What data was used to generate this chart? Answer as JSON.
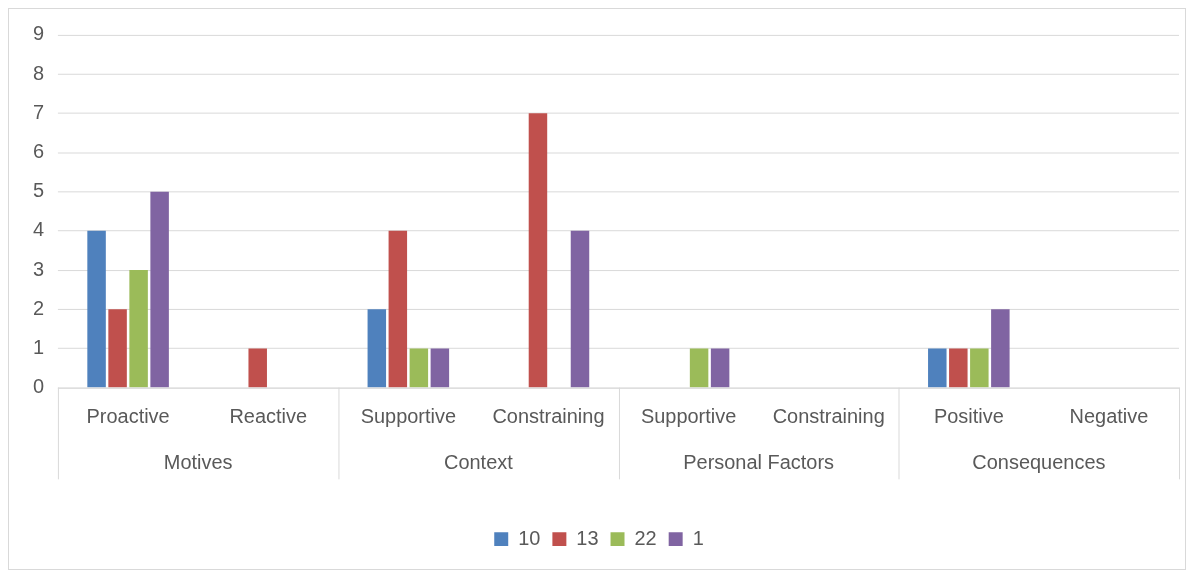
{
  "chart_data": {
    "type": "bar",
    "categories": [
      "Proactive",
      "Reactive",
      "Supportive",
      "Constraining",
      "Supportive",
      "Constraining",
      "Positive",
      "Negative"
    ],
    "series": [
      {
        "name": "10",
        "color": "#4f81bd",
        "values": [
          4,
          0,
          2,
          0,
          0,
          0,
          1,
          0
        ]
      },
      {
        "name": "13",
        "color": "#c0504d",
        "values": [
          2,
          1,
          4,
          7,
          0,
          0,
          1,
          0
        ]
      },
      {
        "name": "22",
        "color": "#9bbb59",
        "values": [
          3,
          0,
          1,
          0,
          1,
          0,
          1,
          0
        ]
      },
      {
        "name": "1",
        "color": "#8064a2",
        "values": [
          5,
          0,
          1,
          4,
          1,
          0,
          2,
          0
        ]
      }
    ],
    "annotations": [
      "Motives",
      "Context",
      "Personal Factors",
      "Consequences"
    ],
    "ylim": [
      0,
      9
    ],
    "yticks": [
      0,
      1,
      2,
      3,
      4,
      5,
      6,
      7,
      8,
      9
    ],
    "grid": "y",
    "legend": "bottom"
  }
}
